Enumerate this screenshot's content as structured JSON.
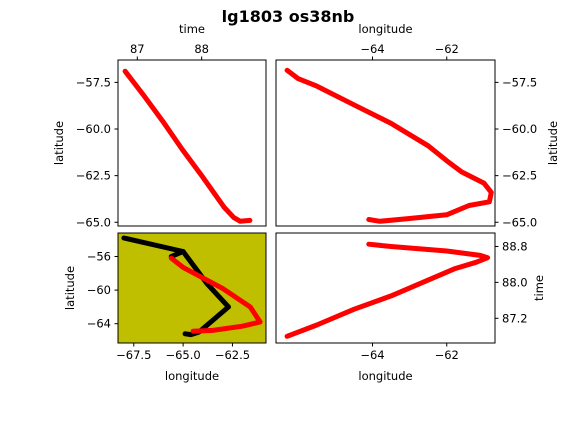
{
  "chart_data": {
    "title": "lg1803 os38nb",
    "colors": {
      "track": "#ff0000",
      "ship": "#000000",
      "map_bg": "#bfbf00"
    },
    "panels": [
      {
        "id": "time-lat",
        "type": "line",
        "xlabel": "time",
        "xlabel_pos": "top",
        "ylabel": "latitude",
        "ylabel_pos": "left",
        "xlim": [
          86.7,
          89.0
        ],
        "ylim": [
          -65.2,
          -56.3
        ],
        "xticks": [
          {
            "v": 87,
            "label": "87"
          },
          {
            "v": 88,
            "label": "88"
          }
        ],
        "yticks": [
          {
            "v": -57.5,
            "label": "−57.5"
          },
          {
            "v": -60.0,
            "label": "−60.0"
          },
          {
            "v": -62.5,
            "label": "−62.5"
          },
          {
            "v": -65.0,
            "label": "−65.0"
          }
        ],
        "series": [
          {
            "color": "#ff0000",
            "points": [
              [
                86.81,
                -56.9
              ],
              [
                87.1,
                -58.2
              ],
              [
                87.4,
                -59.6
              ],
              [
                87.7,
                -61.1
              ],
              [
                88.0,
                -62.5
              ],
              [
                88.35,
                -64.2
              ],
              [
                88.5,
                -64.75
              ],
              [
                88.6,
                -64.95
              ],
              [
                88.75,
                -64.9
              ]
            ]
          }
        ]
      },
      {
        "id": "lon-lat",
        "type": "line",
        "xlabel": "longitude",
        "xlabel_pos": "top",
        "ylabel": "latitude",
        "ylabel_pos": "right",
        "xlim": [
          -66.6,
          -60.7
        ],
        "ylim": [
          -65.2,
          -56.3
        ],
        "xticks": [
          {
            "v": -64,
            "label": "−64"
          },
          {
            "v": -62,
            "label": "−62"
          }
        ],
        "yticks": [
          {
            "v": -57.5,
            "label": "−57.5"
          },
          {
            "v": -60.0,
            "label": "−60.0"
          },
          {
            "v": -62.5,
            "label": "−62.5"
          },
          {
            "v": -65.0,
            "label": "−65.0"
          }
        ],
        "series": [
          {
            "color": "#ff0000",
            "points": [
              [
                -66.3,
                -56.85
              ],
              [
                -66.0,
                -57.3
              ],
              [
                -65.5,
                -57.7
              ],
              [
                -64.5,
                -58.7
              ],
              [
                -63.5,
                -59.7
              ],
              [
                -62.5,
                -60.9
              ],
              [
                -62.0,
                -61.7
              ],
              [
                -61.6,
                -62.3
              ],
              [
                -61.0,
                -62.9
              ],
              [
                -60.8,
                -63.4
              ],
              [
                -60.85,
                -63.9
              ],
              [
                -61.4,
                -64.1
              ],
              [
                -62.0,
                -64.6
              ],
              [
                -63.0,
                -64.8
              ],
              [
                -63.8,
                -64.95
              ],
              [
                -64.1,
                -64.85
              ]
            ]
          }
        ]
      },
      {
        "id": "map",
        "type": "map",
        "xlabel": "longitude",
        "xlabel_pos": "bottom",
        "ylabel": "latitude",
        "ylabel_pos": "left",
        "xlim": [
          -68.3,
          -60.8
        ],
        "ylim": [
          -66.3,
          -53.2
        ],
        "xticks": [
          {
            "v": -67.5,
            "label": "−67.5"
          },
          {
            "v": -65.0,
            "label": "−65.0"
          },
          {
            "v": -62.5,
            "label": "−62.5"
          }
        ],
        "yticks": [
          {
            "v": -56,
            "label": "−56"
          },
          {
            "v": -60,
            "label": "−60"
          },
          {
            "v": -64,
            "label": "−64"
          }
        ],
        "series": [
          {
            "color": "#000000",
            "points": [
              [
                -68.0,
                -53.8
              ],
              [
                -65.0,
                -55.4
              ],
              [
                -63.8,
                -59.2
              ],
              [
                -62.7,
                -62.0
              ],
              [
                -64.2,
                -65.0
              ],
              [
                -64.6,
                -65.3
              ],
              [
                -64.9,
                -65.2
              ]
            ]
          },
          {
            "color": "#000000",
            "points": [
              [
                -65.0,
                -55.4
              ],
              [
                -65.6,
                -56.0
              ]
            ]
          },
          {
            "color": "#ff0000",
            "points": [
              [
                -65.6,
                -56.2
              ],
              [
                -65.0,
                -57.3
              ],
              [
                -63.0,
                -59.8
              ],
              [
                -61.6,
                -62.0
              ],
              [
                -61.1,
                -63.8
              ],
              [
                -62.0,
                -64.3
              ],
              [
                -63.5,
                -64.8
              ],
              [
                -64.5,
                -64.9
              ]
            ]
          }
        ]
      },
      {
        "id": "lon-time",
        "type": "line",
        "xlabel": "longitude",
        "xlabel_pos": "bottom",
        "ylabel": "time",
        "ylabel_pos": "right",
        "xlim": [
          -66.6,
          -60.7
        ],
        "ylim": [
          86.65,
          89.1
        ],
        "xticks": [
          {
            "v": -64,
            "label": "−64"
          },
          {
            "v": -62,
            "label": "−62"
          }
        ],
        "yticks": [
          {
            "v": 87.2,
            "label": "87.2"
          },
          {
            "v": 88.0,
            "label": "88.0"
          },
          {
            "v": 88.8,
            "label": "88.8"
          }
        ],
        "series": [
          {
            "color": "#ff0000",
            "points": [
              [
                -66.3,
                86.8
              ],
              [
                -65.5,
                87.05
              ],
              [
                -64.5,
                87.4
              ],
              [
                -63.5,
                87.7
              ],
              [
                -62.5,
                88.05
              ],
              [
                -61.8,
                88.3
              ],
              [
                -61.2,
                88.45
              ],
              [
                -60.9,
                88.55
              ],
              [
                -61.1,
                88.6
              ],
              [
                -62.0,
                88.7
              ],
              [
                -63.5,
                88.8
              ],
              [
                -64.1,
                88.85
              ]
            ]
          }
        ]
      }
    ]
  }
}
